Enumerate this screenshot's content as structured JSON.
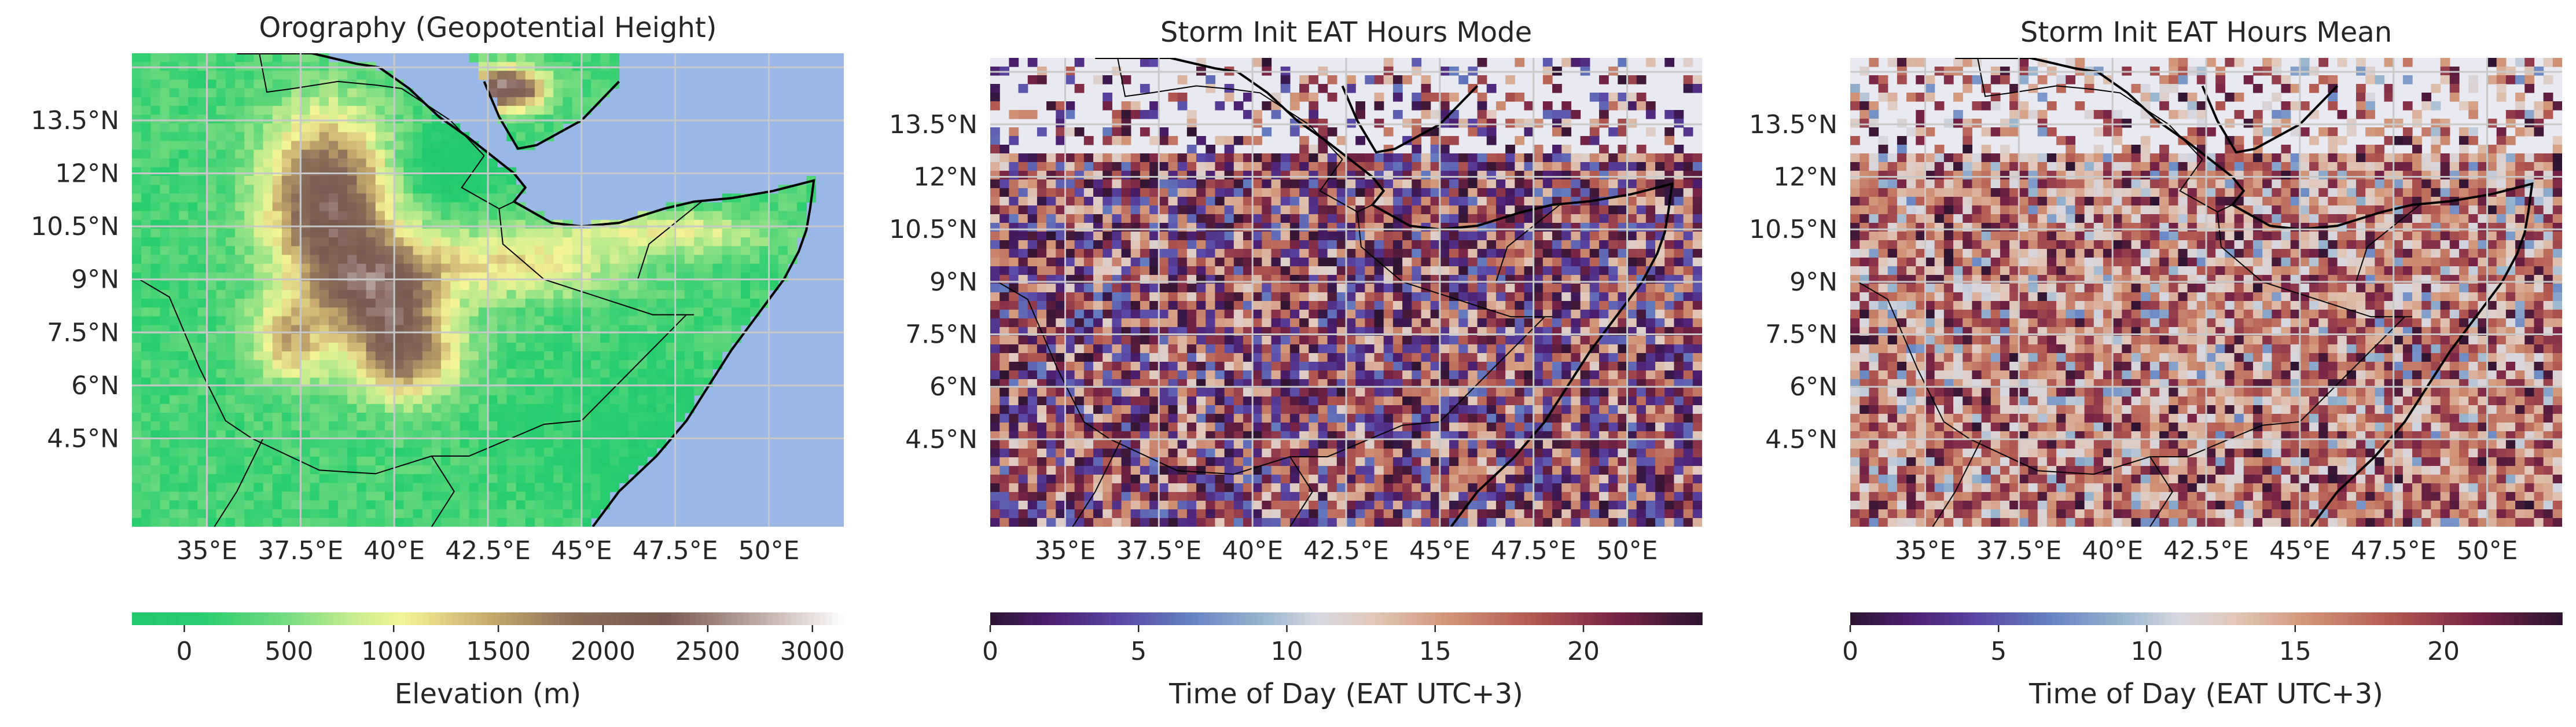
{
  "panels": [
    {
      "id": "orography",
      "title": "Orography (Geopotential Height)",
      "field": "elevation",
      "colormap": "terrain",
      "vmin": -250,
      "vmax": 3150,
      "colorbar_label": "Elevation (m)",
      "colorbar_ticks": [
        0,
        500,
        1000,
        1500,
        2000,
        2500,
        3000
      ],
      "ocean_color": "#99b8e6"
    },
    {
      "id": "mode",
      "title": "Storm Init EAT Hours Mode",
      "field": "mode",
      "colormap": "twilight_shifted",
      "vmin": 0,
      "vmax": 24,
      "colorbar_label": "Time of Day (EAT UTC+3)",
      "colorbar_ticks": [
        0,
        5,
        10,
        15,
        20
      ],
      "background_color": "#e9e9f1"
    },
    {
      "id": "mean",
      "title": "Storm Init EAT Hours Mean",
      "field": "mean",
      "colormap": "twilight_shifted",
      "vmin": 0,
      "vmax": 24,
      "colorbar_label": "Time of Day (EAT UTC+3)",
      "colorbar_ticks": [
        0,
        5,
        10,
        15,
        20
      ],
      "background_color": "#e9e9f1"
    }
  ],
  "map": {
    "lon_range": [
      33.0,
      52.0
    ],
    "lat_range": [
      2.0,
      15.4
    ],
    "lon_ticks": [
      35,
      37.5,
      40,
      42.5,
      45,
      47.5,
      50
    ],
    "lon_tick_labels": [
      "35°E",
      "37.5°E",
      "40°E",
      "42.5°E",
      "45°E",
      "47.5°E",
      "50°E"
    ],
    "lat_ticks": [
      4.5,
      6,
      7.5,
      9,
      10.5,
      12,
      13.5
    ],
    "lat_tick_labels": [
      "4.5°N",
      "6°N",
      "7.5°N",
      "9°N",
      "10.5°N",
      "12°N",
      "13.5°N"
    ],
    "gridlines": true,
    "gridline_color": "#c8c8c8"
  }
}
